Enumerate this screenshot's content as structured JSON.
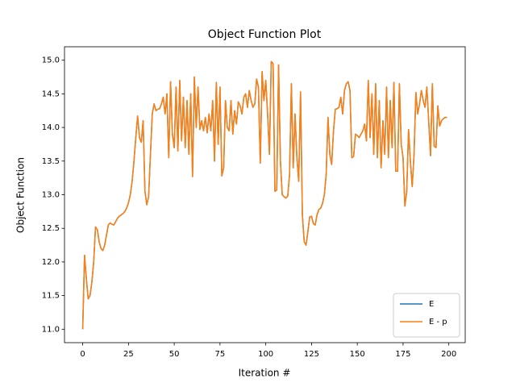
{
  "chart_data": {
    "type": "line",
    "title": "Object Function Plot",
    "xlabel": "Iteration #",
    "ylabel": "Object Function",
    "x": [
      0,
      1,
      2,
      3,
      4,
      5,
      6,
      7,
      8,
      9,
      10,
      11,
      12,
      13,
      14,
      15,
      16,
      17,
      18,
      19,
      20,
      21,
      22,
      23,
      24,
      25,
      26,
      27,
      28,
      29,
      30,
      31,
      32,
      33,
      34,
      35,
      36,
      37,
      38,
      39,
      40,
      41,
      42,
      43,
      44,
      45,
      46,
      47,
      48,
      49,
      50,
      51,
      52,
      53,
      54,
      55,
      56,
      57,
      58,
      59,
      60,
      61,
      62,
      63,
      64,
      65,
      66,
      67,
      68,
      69,
      70,
      71,
      72,
      73,
      74,
      75,
      76,
      77,
      78,
      79,
      80,
      81,
      82,
      83,
      84,
      85,
      86,
      87,
      88,
      89,
      90,
      91,
      92,
      93,
      94,
      95,
      96,
      97,
      98,
      99,
      100,
      101,
      102,
      103,
      104,
      105,
      106,
      107,
      108,
      109,
      110,
      111,
      112,
      113,
      114,
      115,
      116,
      117,
      118,
      119,
      120,
      121,
      122,
      123,
      124,
      125,
      126,
      127,
      128,
      129,
      130,
      131,
      132,
      133,
      134,
      135,
      136,
      137,
      138,
      139,
      140,
      141,
      142,
      143,
      144,
      145,
      146,
      147,
      148,
      149,
      150,
      151,
      152,
      153,
      154,
      155,
      156,
      157,
      158,
      159,
      160,
      161,
      162,
      163,
      164,
      165,
      166,
      167,
      168,
      169,
      170,
      171,
      172,
      173,
      174,
      175,
      176,
      177,
      178,
      179,
      180,
      181,
      182,
      183,
      184,
      185,
      186,
      187,
      188,
      189,
      190,
      191,
      192,
      193,
      194,
      195,
      196,
      197,
      198,
      199
    ],
    "series": [
      {
        "name": "E",
        "color": "#1f77b4",
        "values": [
          11.0,
          12.1,
          11.75,
          11.45,
          11.5,
          11.7,
          12.0,
          12.52,
          12.48,
          12.3,
          12.2,
          12.17,
          12.25,
          12.4,
          12.55,
          12.58,
          12.56,
          12.55,
          12.6,
          12.65,
          12.68,
          12.7,
          12.72,
          12.75,
          12.8,
          12.88,
          13.0,
          13.2,
          13.5,
          13.85,
          14.17,
          13.85,
          13.78,
          14.1,
          13.05,
          12.85,
          12.97,
          13.6,
          14.2,
          14.35,
          14.25,
          14.27,
          14.28,
          14.35,
          14.45,
          14.2,
          14.5,
          13.55,
          14.68,
          13.9,
          13.7,
          14.6,
          13.65,
          14.7,
          13.8,
          14.45,
          13.7,
          14.4,
          13.6,
          14.5,
          13.27,
          14.75,
          14.0,
          14.6,
          13.97,
          14.1,
          13.95,
          14.15,
          13.92,
          14.2,
          13.95,
          14.4,
          13.5,
          14.67,
          13.75,
          14.6,
          13.28,
          13.4,
          14.4,
          14.0,
          13.95,
          14.4,
          13.9,
          14.25,
          14.05,
          14.38,
          14.32,
          14.2,
          14.45,
          14.5,
          14.3,
          14.55,
          14.4,
          14.3,
          14.35,
          14.72,
          14.6,
          13.47,
          14.83,
          14.4,
          14.7,
          14.2,
          13.6,
          14.98,
          14.95,
          13.05,
          13.07,
          14.93,
          13.5,
          13.0,
          12.97,
          12.95,
          12.98,
          13.3,
          14.65,
          13.4,
          14.2,
          13.55,
          13.2,
          14.53,
          12.7,
          12.3,
          12.25,
          12.45,
          12.67,
          12.68,
          12.57,
          12.55,
          12.7,
          12.78,
          12.8,
          12.87,
          13.0,
          13.3,
          14.15,
          13.6,
          13.45,
          13.95,
          14.27,
          14.28,
          14.3,
          14.45,
          14.2,
          14.55,
          14.65,
          14.68,
          14.55,
          13.55,
          13.57,
          13.9,
          13.88,
          13.85,
          13.9,
          13.95,
          14.05,
          13.8,
          14.7,
          13.85,
          14.5,
          13.6,
          14.65,
          13.55,
          14.4,
          13.4,
          14.1,
          13.6,
          14.6,
          13.55,
          14.4,
          13.7,
          14.67,
          13.35,
          13.35,
          14.65,
          13.75,
          13.55,
          12.83,
          13.05,
          13.97,
          13.5,
          13.12,
          13.6,
          14.52,
          14.2,
          14.35,
          14.55,
          14.4,
          14.3,
          14.6,
          14.1,
          13.58,
          14.65,
          13.72,
          13.7,
          14.32,
          14.02,
          14.1,
          14.13,
          14.15,
          14.15
        ]
      },
      {
        "name": "E - p",
        "color": "#ff7f0e",
        "values": [
          11.0,
          12.1,
          11.75,
          11.45,
          11.5,
          11.7,
          12.0,
          12.52,
          12.48,
          12.3,
          12.2,
          12.17,
          12.25,
          12.4,
          12.55,
          12.58,
          12.56,
          12.55,
          12.6,
          12.65,
          12.68,
          12.7,
          12.72,
          12.75,
          12.8,
          12.88,
          13.0,
          13.2,
          13.5,
          13.85,
          14.17,
          13.85,
          13.78,
          14.1,
          13.05,
          12.85,
          12.97,
          13.6,
          14.2,
          14.35,
          14.25,
          14.27,
          14.28,
          14.35,
          14.45,
          14.2,
          14.5,
          13.55,
          14.68,
          13.9,
          13.7,
          14.6,
          13.65,
          14.7,
          13.8,
          14.45,
          13.7,
          14.4,
          13.6,
          14.5,
          13.27,
          14.75,
          14.0,
          14.6,
          13.97,
          14.1,
          13.95,
          14.15,
          13.92,
          14.2,
          13.95,
          14.4,
          13.5,
          14.67,
          13.75,
          14.6,
          13.28,
          13.4,
          14.4,
          14.0,
          13.95,
          14.4,
          13.9,
          14.25,
          14.05,
          14.38,
          14.32,
          14.2,
          14.45,
          14.5,
          14.3,
          14.55,
          14.4,
          14.3,
          14.35,
          14.72,
          14.6,
          13.47,
          14.83,
          14.4,
          14.7,
          14.2,
          13.6,
          14.98,
          14.95,
          13.05,
          13.07,
          14.93,
          13.5,
          13.0,
          12.97,
          12.95,
          12.98,
          13.3,
          14.65,
          13.4,
          14.2,
          13.55,
          13.2,
          14.53,
          12.7,
          12.3,
          12.25,
          12.45,
          12.67,
          12.68,
          12.57,
          12.55,
          12.7,
          12.78,
          12.8,
          12.87,
          13.0,
          13.3,
          14.15,
          13.6,
          13.45,
          13.95,
          14.27,
          14.28,
          14.3,
          14.45,
          14.2,
          14.55,
          14.65,
          14.68,
          14.55,
          13.55,
          13.57,
          13.9,
          13.88,
          13.85,
          13.9,
          13.95,
          14.05,
          13.8,
          14.7,
          13.85,
          14.5,
          13.6,
          14.65,
          13.55,
          14.4,
          13.4,
          14.1,
          13.6,
          14.6,
          13.55,
          14.4,
          13.7,
          14.67,
          13.35,
          13.35,
          14.65,
          13.75,
          13.55,
          12.83,
          13.05,
          13.97,
          13.5,
          13.12,
          13.6,
          14.52,
          14.2,
          14.35,
          14.55,
          14.4,
          14.3,
          14.6,
          14.1,
          13.58,
          14.65,
          13.72,
          13.7,
          14.32,
          14.02,
          14.1,
          14.13,
          14.15,
          14.15
        ]
      }
    ],
    "xlim": [
      -9.95,
      208.95
    ],
    "xticks": [
      0,
      25,
      50,
      75,
      100,
      125,
      150,
      175,
      200
    ],
    "ylim": [
      10.8,
      15.2
    ],
    "yticks": [
      {
        "value": 11,
        "label": "11.0"
      },
      {
        "value": 11.5,
        "label": "11.5"
      },
      {
        "value": 12,
        "label": "12.0"
      },
      {
        "value": 12.5,
        "label": "12.5"
      },
      {
        "value": 13,
        "label": "13.0"
      },
      {
        "value": 13.5,
        "label": "13.5"
      },
      {
        "value": 14,
        "label": "14.0"
      },
      {
        "value": 14.5,
        "label": "14.5"
      },
      {
        "value": 15,
        "label": "15.0"
      }
    ],
    "legend": "lower right"
  }
}
